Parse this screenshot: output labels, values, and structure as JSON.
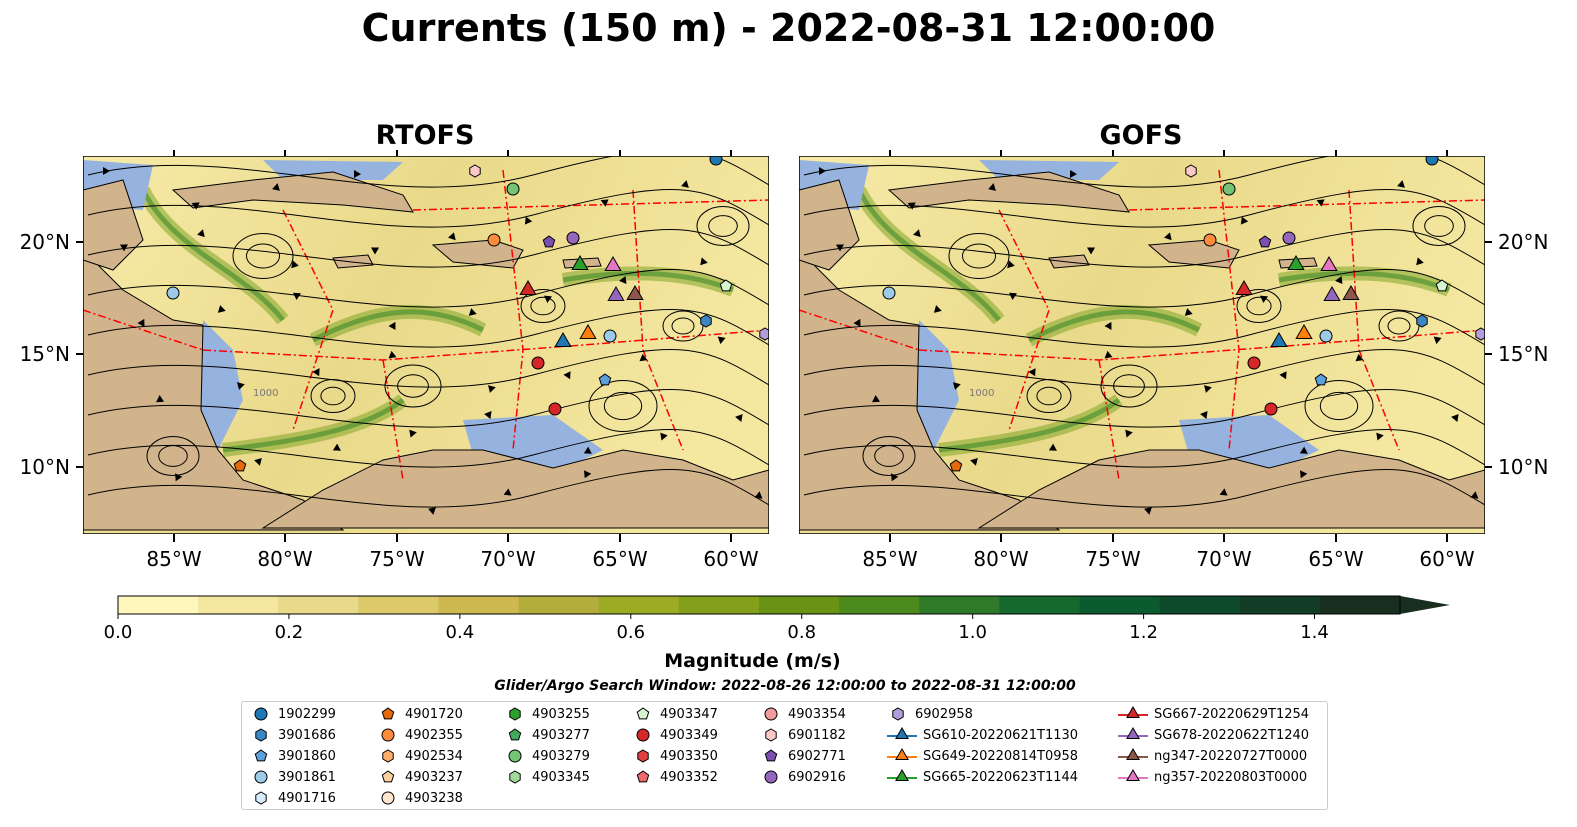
{
  "title": "Currents (150 m) - 2022-08-31 12:00:00",
  "panels": [
    {
      "title": "RTOFS"
    },
    {
      "title": "GOFS"
    }
  ],
  "lon_ticks": [
    "85°W",
    "80°W",
    "75°W",
    "70°W",
    "65°W",
    "60°W"
  ],
  "lat_ticks": [
    "20°N",
    "15°N",
    "10°N"
  ],
  "contour_label": "1000",
  "colorbar": {
    "label": "Magnitude (m/s)",
    "ticks": [
      "0.0",
      "0.2",
      "0.4",
      "0.6",
      "0.8",
      "1.0",
      "1.2",
      "1.4"
    ],
    "min": 0.0,
    "max": 1.5,
    "extend": "max",
    "colors": [
      "#fff7bc",
      "#f4e7a0",
      "#e9d98a",
      "#dcc96a",
      "#cdb950",
      "#b3ad3c",
      "#9bab24",
      "#84a01a",
      "#689314",
      "#4d8a1e",
      "#2e7a28",
      "#16692e",
      "#0b5a30",
      "#0d4a2c",
      "#123c26",
      "#182e1e"
    ]
  },
  "search_window": "Glider/Argo Search Window: 2022-08-26 12:00:00 to 2022-08-31 12:00:00",
  "legend": {
    "columns": [
      [
        {
          "label": "1902299",
          "marker": "circle",
          "color": "#1f77b4"
        },
        {
          "label": "3901686",
          "marker": "hexagon",
          "color": "#3a87c4"
        },
        {
          "label": "3901860",
          "marker": "pentagon",
          "color": "#5aa0dc"
        },
        {
          "label": "3901861",
          "marker": "circle",
          "color": "#9ecae9"
        },
        {
          "label": "4901716",
          "marker": "hexagon",
          "color": "#d7ecfa"
        }
      ],
      [
        {
          "label": "4901720",
          "marker": "pentagon",
          "color": "#e6690c"
        },
        {
          "label": "4902355",
          "marker": "circle",
          "color": "#fd8d3c"
        },
        {
          "label": "4902534",
          "marker": "hexagon",
          "color": "#fdae6b"
        },
        {
          "label": "4903237",
          "marker": "pentagon",
          "color": "#fdd0a2"
        },
        {
          "label": "4903238",
          "marker": "circle",
          "color": "#fee6ce"
        }
      ],
      [
        {
          "label": "4903255",
          "marker": "hexagon",
          "color": "#2ca02c"
        },
        {
          "label": "4903277",
          "marker": "pentagon",
          "color": "#41ab5d"
        },
        {
          "label": "4903279",
          "marker": "circle",
          "color": "#74c476"
        },
        {
          "label": "4903345",
          "marker": "hexagon",
          "color": "#a1d99b"
        }
      ],
      [
        {
          "label": "4903347",
          "marker": "pentagon",
          "color": "#d7f5d0"
        },
        {
          "label": "4903349",
          "marker": "circle",
          "color": "#d62728"
        },
        {
          "label": "4903350",
          "marker": "hexagon",
          "color": "#e2403d"
        },
        {
          "label": "4903352",
          "marker": "pentagon",
          "color": "#ef6b6b"
        }
      ],
      [
        {
          "label": "4903354",
          "marker": "circle",
          "color": "#f19c9c"
        },
        {
          "label": "6901182",
          "marker": "hexagon",
          "color": "#fcc8c8"
        },
        {
          "label": "6902771",
          "marker": "pentagon",
          "color": "#7b4fb0"
        },
        {
          "label": "6902916",
          "marker": "circle",
          "color": "#9467bd"
        }
      ],
      [
        {
          "label": "6902958",
          "marker": "hexagon",
          "color": "#b39ddb"
        },
        {
          "label": "SG610-20220621T1130",
          "marker": "triangle",
          "color": "#1f77b4"
        },
        {
          "label": "SG649-20220814T0958",
          "marker": "triangle",
          "color": "#ff7f0e"
        },
        {
          "label": "SG665-20220623T1144",
          "marker": "triangle",
          "color": "#2ca02c"
        }
      ],
      [
        {
          "label": "SG667-20220629T1254",
          "marker": "triangle",
          "color": "#d62728"
        },
        {
          "label": "SG678-20220622T1240",
          "marker": "triangle",
          "color": "#9467bd"
        },
        {
          "label": "ng347-20220727T0000",
          "marker": "triangle",
          "color": "#8c564b"
        },
        {
          "label": "ng357-20220803T0000",
          "marker": "triangle",
          "color": "#e377c2"
        }
      ]
    ]
  },
  "map_colors": {
    "land": "#d2b48c",
    "water": "#95b3de",
    "eez": "#ff0000",
    "stream": "#000000"
  }
}
